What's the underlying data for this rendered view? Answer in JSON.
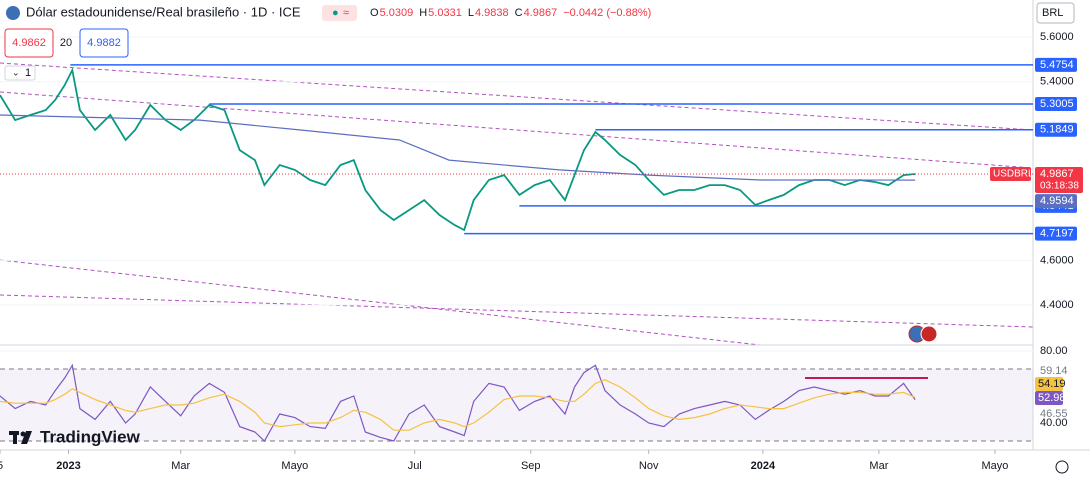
{
  "header": {
    "title": "Dólar estadounidense/Real brasileño · 1D · ICE",
    "ohlc": [
      "O",
      "5.0309",
      "H",
      "5.0331",
      "L",
      "4.9838",
      "C",
      "4.9867",
      "−0.0442 (−0.88%)"
    ],
    "bid": "4.9862",
    "spread": "20",
    "ask": "4.9882",
    "currency": "BRL",
    "layers": "1",
    "logo": "TradingView"
  },
  "chart_data": [
    {
      "type": "line",
      "x": [
        0,
        8,
        16,
        24,
        29,
        34,
        38,
        42,
        50,
        58,
        66,
        71,
        79,
        87,
        95,
        102,
        110,
        118,
        126,
        134,
        139,
        147,
        155,
        163,
        171,
        179,
        186,
        192,
        200,
        207,
        215,
        223,
        231,
        239,
        244,
        249,
        257,
        265,
        273,
        281,
        289,
        297,
        302,
        307,
        313,
        318,
        326,
        334,
        341,
        349,
        357,
        365,
        373,
        381,
        389,
        397,
        404,
        412,
        420,
        428,
        436,
        444,
        452,
        460,
        467,
        475,
        481
      ],
      "series": [
        {
          "name": "USDBRL",
          "color": "#089981",
          "values": [
            5.34,
            5.228,
            5.251,
            5.273,
            5.318,
            5.385,
            5.452,
            5.273,
            5.184,
            5.251,
            5.139,
            5.184,
            5.296,
            5.228,
            5.184,
            5.228,
            5.296,
            5.273,
            5.094,
            5.049,
            4.937,
            5.027,
            5.005,
            4.96,
            4.937,
            5.027,
            5.049,
            4.915,
            4.825,
            4.781,
            4.825,
            4.87,
            4.803,
            4.758,
            4.736,
            4.87,
            4.96,
            4.982,
            4.893,
            4.937,
            4.96,
            4.87,
            4.982,
            5.094,
            5.175,
            5.139,
            5.072,
            5.027,
            4.96,
            4.893,
            4.915,
            4.915,
            4.937,
            4.937,
            4.915,
            4.848,
            4.87,
            4.893,
            4.937,
            4.96,
            4.96,
            4.937,
            4.96,
            4.951,
            4.937,
            4.982,
            4.9867
          ],
          "time_label": "03:18:38"
        },
        {
          "color": "#5b6fc0",
          "x": [
            0,
            50,
            105,
            158,
            210,
            236,
            294,
            341,
            400,
            481
          ],
          "values": [
            5.251,
            5.24,
            5.228,
            5.184,
            5.139,
            5.049,
            5.005,
            4.982,
            4.96,
            4.9594
          ]
        }
      ],
      "levels": [
        {
          "value": 5.4754,
          "from": 37
        },
        {
          "value": 5.3005,
          "from": 110
        },
        {
          "value": 5.1849,
          "from": 313
        },
        {
          "value": 4.8441,
          "from": 273
        },
        {
          "value": 4.7197,
          "from": 244
        }
      ],
      "level_color": "#2962ff",
      "xlim": [
        0,
        543
      ],
      "ylim": [
        4.221,
        5.766
      ],
      "yticks": [
        {
          "value": 5.6,
          "label": "5.6000"
        },
        {
          "value": 5.4,
          "label": "5.4000"
        },
        {
          "value": 4.6,
          "label": "4.6000"
        },
        {
          "value": 4.4,
          "label": "4.4000"
        }
      ],
      "xticks": [
        {
          "value": 0,
          "label": "5"
        },
        {
          "value": 36,
          "label": "2023"
        },
        {
          "value": 95,
          "label": "Mar"
        },
        {
          "value": 155,
          "label": "Mayo"
        },
        {
          "value": 218,
          "label": "Jul"
        },
        {
          "value": 279,
          "label": "Sep"
        },
        {
          "value": 341,
          "label": "Nov"
        },
        {
          "value": 401,
          "label": "2024"
        },
        {
          "value": 462,
          "label": "Mar"
        },
        {
          "value": 523,
          "label": "Mayo"
        }
      ]
    },
    {
      "type": "line",
      "x": [
        0,
        8,
        16,
        24,
        29,
        34,
        38,
        42,
        50,
        58,
        66,
        71,
        79,
        87,
        95,
        102,
        110,
        118,
        126,
        134,
        139,
        147,
        155,
        163,
        171,
        179,
        186,
        192,
        200,
        207,
        215,
        223,
        231,
        239,
        244,
        249,
        257,
        265,
        273,
        281,
        289,
        297,
        302,
        307,
        313,
        318,
        326,
        334,
        341,
        349,
        357,
        365,
        373,
        381,
        389,
        397,
        404,
        412,
        420,
        428,
        436,
        444,
        452,
        460,
        467,
        475,
        481
      ],
      "series": [
        {
          "color": "#7e57c2",
          "values": [
            55,
            48,
            52,
            50,
            58,
            65,
            72,
            48,
            42,
            52,
            40,
            45,
            60,
            52,
            44,
            55,
            62,
            57,
            38,
            35,
            30,
            45,
            43,
            38,
            37,
            52,
            55,
            35,
            32,
            30,
            45,
            50,
            38,
            35,
            33,
            52,
            62,
            60,
            47,
            52,
            55,
            45,
            60,
            68,
            72,
            58,
            50,
            45,
            40,
            38,
            45,
            48,
            50,
            52,
            50,
            42,
            47,
            52,
            58,
            60,
            58,
            56,
            58,
            55,
            55,
            62,
            52.98
          ]
        },
        {
          "color": "#f5c242",
          "values": [
            52,
            51,
            51,
            51,
            53,
            56,
            59,
            57,
            53,
            50,
            47,
            46,
            48,
            50,
            50,
            51,
            54,
            56,
            52,
            46,
            40,
            38,
            39,
            40,
            40,
            43,
            47,
            46,
            42,
            36,
            36,
            40,
            42,
            40,
            38,
            40,
            46,
            53,
            55,
            55,
            54,
            52,
            52,
            56,
            62,
            64,
            60,
            54,
            48,
            44,
            42,
            43,
            45,
            48,
            50,
            49,
            48,
            48,
            51,
            54,
            56,
            57,
            57,
            56,
            56,
            57,
            54.19
          ]
        }
      ],
      "bands": [
        70,
        30
      ],
      "upper": 59.14,
      "lower": 46.55,
      "xlim": [
        0,
        543
      ],
      "ylim": [
        26.1,
        83.3
      ],
      "yticks": [
        {
          "value": 80,
          "label": "80.00"
        },
        {
          "value": 40,
          "label": "40.00"
        }
      ]
    }
  ]
}
